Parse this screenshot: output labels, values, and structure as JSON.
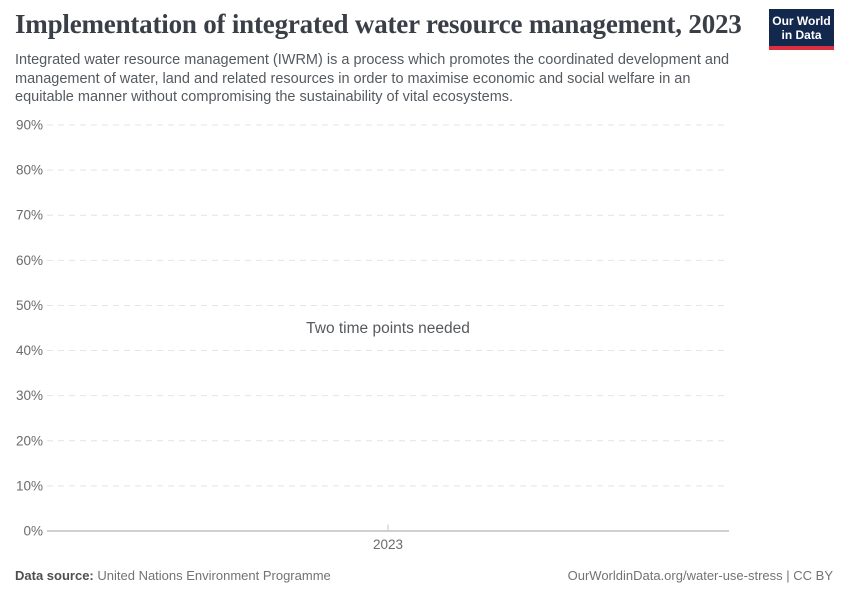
{
  "header": {
    "title": "Implementation of integrated water resource management, 2023",
    "subtitle": "Integrated water resource management (IWRM) is a process which promotes the coordinated development and management of water, land and related resources in order to maximise economic and social welfare in an equitable manner without compromising the sustainability of vital ecosystems.",
    "logo": {
      "line1": "Our World",
      "line2": "in Data"
    }
  },
  "chart_data": {
    "type": "line",
    "title": "Implementation of integrated water resource management, 2023",
    "empty_message": "Two time points needed",
    "series": [],
    "xlabel": "",
    "ylabel": "",
    "ylim": [
      0,
      90
    ],
    "y_ticks": [
      {
        "value": 0,
        "label": "0%"
      },
      {
        "value": 10,
        "label": "10%"
      },
      {
        "value": 20,
        "label": "20%"
      },
      {
        "value": 30,
        "label": "30%"
      },
      {
        "value": 40,
        "label": "40%"
      },
      {
        "value": 50,
        "label": "50%"
      },
      {
        "value": 60,
        "label": "60%"
      },
      {
        "value": 70,
        "label": "70%"
      },
      {
        "value": 80,
        "label": "80%"
      },
      {
        "value": 90,
        "label": "90%"
      }
    ],
    "x_ticks": [
      {
        "value": 2023,
        "label": "2023"
      }
    ],
    "grid": "horizontal-dashed",
    "legend": "none"
  },
  "colors": {
    "logo_background": "#12294d",
    "logo_accent": "#dc2f40",
    "grid_line": "#e4e4e4",
    "axis_line": "#a0a0a0",
    "tick_mark": "#c4c4c4",
    "tick_label": "#6b6b6b",
    "message_text": "#56595d",
    "title_text": "#3a3f47",
    "subtitle_text": "#555a5f"
  },
  "footer": {
    "datasource_label": "Data source:",
    "datasource_value": "United Nations Environment Programme",
    "attribution": "OurWorldinData.org/water-use-stress | CC BY"
  }
}
